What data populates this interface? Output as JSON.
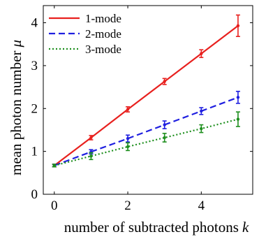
{
  "chart_data": {
    "type": "line",
    "title": "",
    "xlabel": "number of subtracted photons",
    "xlabel_symbol": "k",
    "ylabel": "mean photon number",
    "ylabel_symbol": "μ",
    "xlim": [
      -0.3,
      5.4
    ],
    "ylim": [
      0,
      4.4
    ],
    "xticks": [
      0,
      2,
      4
    ],
    "yticks": [
      0,
      1,
      2,
      3,
      4
    ],
    "grid": false,
    "legend_position": "top-left",
    "series": [
      {
        "name": "1-mode",
        "color": "#e8201e",
        "dash": "solid",
        "x": [
          0,
          1,
          2,
          3,
          4,
          5
        ],
        "y": [
          0.67,
          1.32,
          1.98,
          2.63,
          3.28,
          3.93
        ],
        "err": [
          0.03,
          0.05,
          0.06,
          0.07,
          0.09,
          0.25
        ]
      },
      {
        "name": "2-mode",
        "color": "#1f1fe0",
        "dash": "dashed",
        "x": [
          0,
          1,
          2,
          3,
          4,
          5
        ],
        "y": [
          0.67,
          0.99,
          1.3,
          1.62,
          1.94,
          2.26
        ],
        "err": [
          0.03,
          0.05,
          0.08,
          0.09,
          0.08,
          0.14
        ]
      },
      {
        "name": "3-mode",
        "color": "#1e8f1e",
        "dash": "dotted",
        "x": [
          0,
          1,
          2,
          3,
          4,
          5
        ],
        "y": [
          0.67,
          0.89,
          1.11,
          1.32,
          1.53,
          1.75
        ],
        "err": [
          0.03,
          0.08,
          0.09,
          0.1,
          0.09,
          0.17
        ]
      }
    ]
  }
}
